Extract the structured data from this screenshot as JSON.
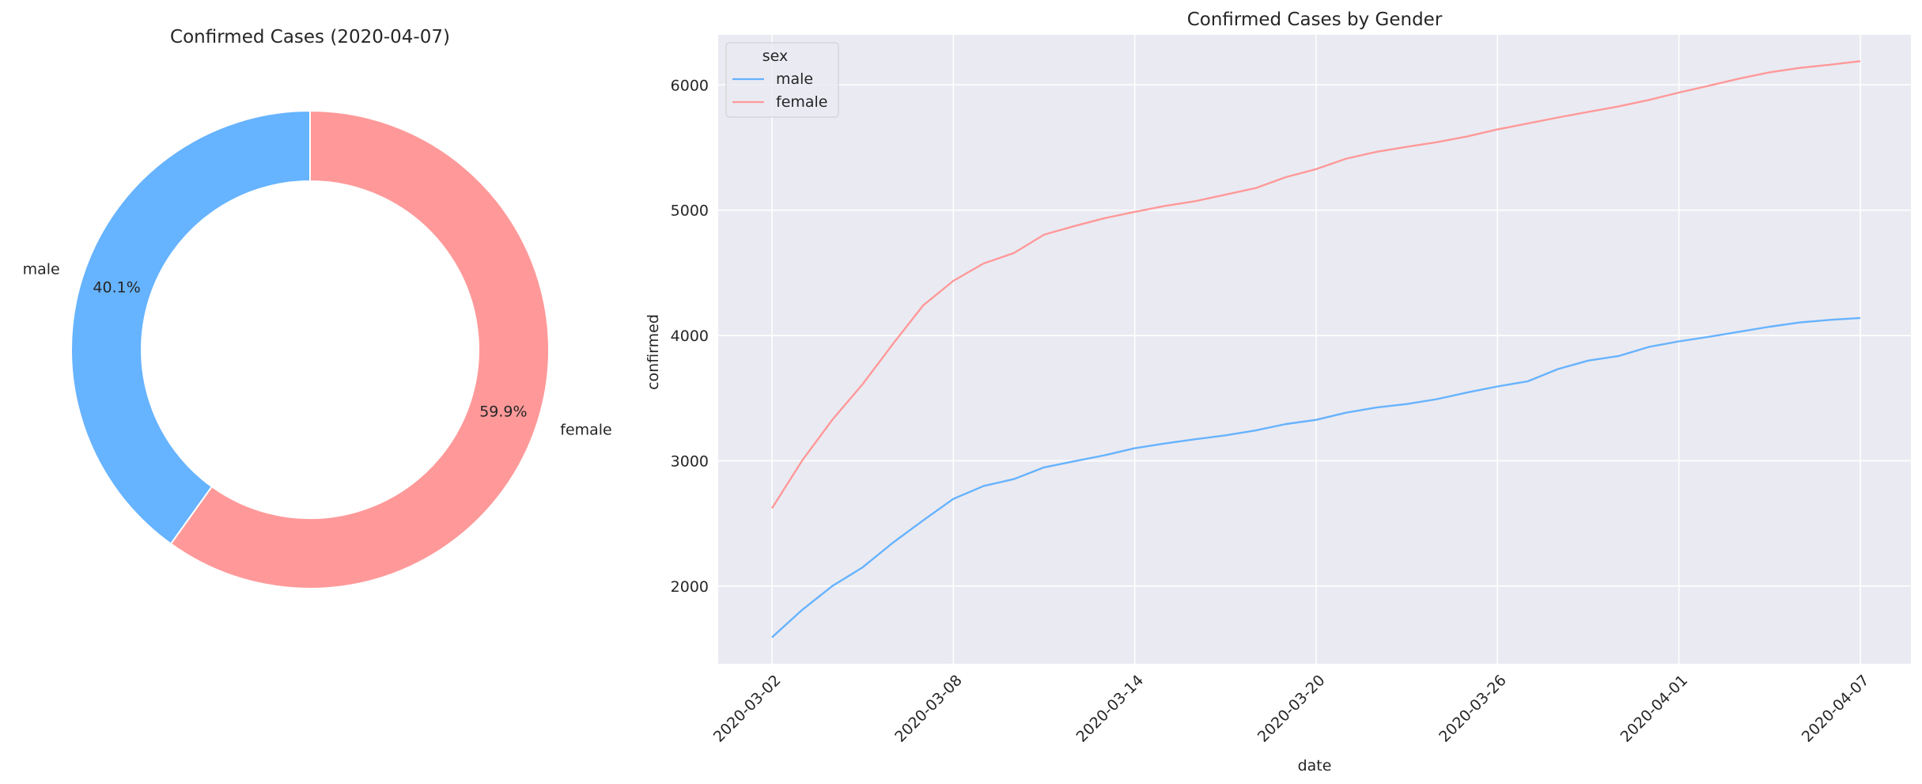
{
  "chart_data": [
    {
      "type": "pie",
      "donut": true,
      "title": "Confirmed Cases (2020-04-07)",
      "slices": [
        {
          "label": "male",
          "pct_label": "40.1%",
          "value": 40.1,
          "color": "#66b3ff"
        },
        {
          "label": "female",
          "pct_label": "59.9%",
          "value": 59.9,
          "color": "#ff9999"
        }
      ],
      "start_angle_deg": 90,
      "counterclock": true
    },
    {
      "type": "line",
      "title": "Confirmed Cases by Gender",
      "xlabel": "date",
      "ylabel": "confirmed",
      "x": [
        "2020-03-02",
        "2020-03-03",
        "2020-03-04",
        "2020-03-05",
        "2020-03-06",
        "2020-03-07",
        "2020-03-08",
        "2020-03-09",
        "2020-03-10",
        "2020-03-11",
        "2020-03-12",
        "2020-03-13",
        "2020-03-14",
        "2020-03-15",
        "2020-03-16",
        "2020-03-17",
        "2020-03-18",
        "2020-03-19",
        "2020-03-20",
        "2020-03-21",
        "2020-03-22",
        "2020-03-23",
        "2020-03-24",
        "2020-03-25",
        "2020-03-26",
        "2020-03-27",
        "2020-03-28",
        "2020-03-29",
        "2020-03-30",
        "2020-03-31",
        "2020-04-01",
        "2020-04-02",
        "2020-04-03",
        "2020-04-04",
        "2020-04-05",
        "2020-04-06",
        "2020-04-07"
      ],
      "x_ticks": [
        "2020-03-02",
        "2020-03-08",
        "2020-03-14",
        "2020-03-20",
        "2020-03-26",
        "2020-04-01",
        "2020-04-07"
      ],
      "y_ticks": [
        2000,
        3000,
        4000,
        5000,
        6000
      ],
      "ylim": [
        1380,
        6400
      ],
      "grid": true,
      "legend": {
        "title": "sex",
        "placement": "top-left"
      },
      "series": [
        {
          "name": "male",
          "color": "#66b3ff",
          "values": [
            1591,
            1810,
            2001,
            2150,
            2346,
            2524,
            2696,
            2799,
            2854,
            2947,
            2996,
            3044,
            3100,
            3138,
            3172,
            3203,
            3242,
            3293,
            3327,
            3384,
            3425,
            3453,
            3492,
            3545,
            3593,
            3634,
            3732,
            3800,
            3836,
            3908,
            3953,
            3990,
            4030,
            4070,
            4104,
            4125,
            4140
          ]
        },
        {
          "name": "female",
          "color": "#ff9999",
          "values": [
            2621,
            3002,
            3328,
            3612,
            3932,
            4240,
            4436,
            4575,
            4658,
            4805,
            4873,
            4936,
            4987,
            5034,
            5072,
            5124,
            5177,
            5264,
            5328,
            5412,
            5466,
            5506,
            5543,
            5589,
            5645,
            5692,
            5740,
            5785,
            5828,
            5880,
            5939,
            5994,
            6051,
            6101,
            6136,
            6161,
            6190
          ]
        }
      ]
    }
  ]
}
